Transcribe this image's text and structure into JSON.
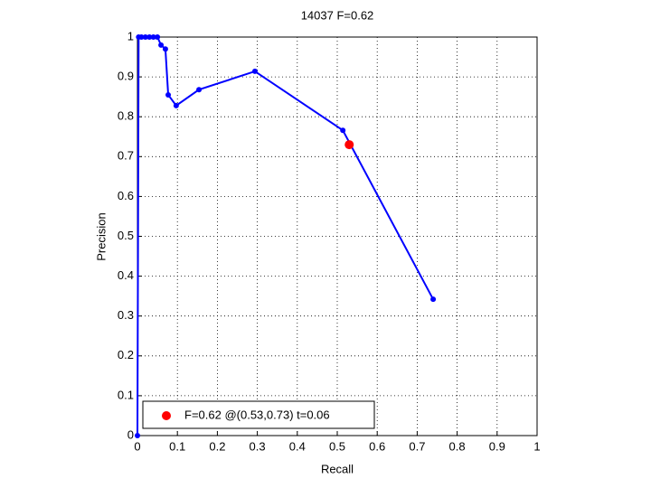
{
  "chart_data": {
    "type": "line",
    "title": "14037 F=0.62",
    "x_label": "Recall",
    "y_label": "Precision",
    "xlim": [
      0,
      1
    ],
    "ylim": [
      0,
      1
    ],
    "xticks": [
      0,
      0.1,
      0.2,
      0.3,
      0.4,
      0.5,
      0.6,
      0.7,
      0.8,
      0.9,
      1
    ],
    "yticks": [
      0,
      0.1,
      0.2,
      0.3,
      0.4,
      0.5,
      0.6,
      0.7,
      0.8,
      0.9,
      1
    ],
    "grid": true,
    "legend": "lower left",
    "series": [
      {
        "color": "#0000ff",
        "x": [
          0,
          0.003,
          0.01,
          0.02,
          0.03,
          0.04,
          0.05,
          0.059,
          0.07,
          0.077,
          0.097,
          0.154,
          0.294,
          0.514,
          0.74
        ],
        "values": [
          0,
          1,
          1,
          1,
          1,
          1,
          1,
          0.98,
          0.97,
          0.855,
          0.828,
          0.868,
          0.914,
          0.766,
          0.342
        ]
      }
    ],
    "best_point": {
      "name": "F=0.62 @(0.53,0.73) t=0.06",
      "color": "#ff0000",
      "x": 0.53,
      "y": 0.73
    }
  }
}
